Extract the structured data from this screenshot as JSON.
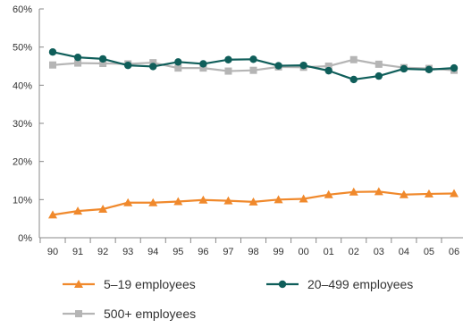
{
  "chart_data": {
    "type": "line",
    "title": "",
    "xlabel": "",
    "ylabel": "",
    "categories": [
      "90",
      "91",
      "92",
      "93",
      "94",
      "95",
      "96",
      "97",
      "98",
      "99",
      "00",
      "01",
      "02",
      "03",
      "04",
      "05",
      "06"
    ],
    "ylim": [
      0,
      60
    ],
    "y_ticks": [
      0,
      10,
      20,
      30,
      40,
      50,
      60
    ],
    "y_tick_suffix": "%",
    "grid": false,
    "legend_position": "bottom",
    "series": [
      {
        "name": "5–19 employees",
        "color": "#f0892c",
        "marker": "triangle",
        "values": [
          6.0,
          7.0,
          7.5,
          9.2,
          9.2,
          9.5,
          9.9,
          9.7,
          9.4,
          10.0,
          10.2,
          11.3,
          12.0,
          12.1,
          11.3,
          11.5,
          11.6
        ]
      },
      {
        "name": "20–499 employees",
        "color": "#0f5e5a",
        "marker": "circle",
        "values": [
          48.7,
          47.3,
          46.9,
          45.2,
          44.9,
          46.1,
          45.6,
          46.7,
          46.8,
          45.1,
          45.2,
          43.8,
          41.5,
          42.4,
          44.3,
          44.1,
          44.5
        ]
      },
      {
        "name": "500+ employees",
        "color": "#b5b5b5",
        "marker": "square",
        "values": [
          45.3,
          45.8,
          45.7,
          45.6,
          45.9,
          44.5,
          44.5,
          43.7,
          43.9,
          44.8,
          44.7,
          45.0,
          46.7,
          45.5,
          44.6,
          44.4,
          43.9
        ]
      }
    ]
  }
}
